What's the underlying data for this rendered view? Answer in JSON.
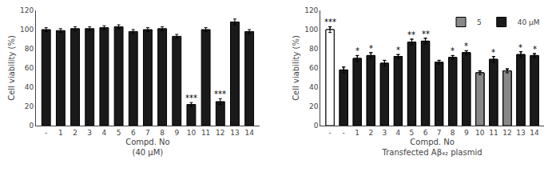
{
  "chart_data": [
    {
      "type": "bar",
      "categories": [
        "-",
        "1",
        "2",
        "3",
        "4",
        "5",
        "6",
        "7",
        "8",
        "9",
        "10",
        "11",
        "12",
        "13",
        "14"
      ],
      "values": [
        100,
        99,
        101,
        101,
        102,
        103,
        98,
        100,
        101,
        93,
        22,
        100,
        25,
        108,
        98
      ],
      "errors": [
        2,
        2,
        2,
        2,
        2,
        2,
        2,
        2,
        2,
        2,
        2,
        2,
        3,
        3,
        2
      ],
      "annotations": [
        null,
        null,
        null,
        null,
        null,
        null,
        null,
        null,
        null,
        null,
        "***",
        null,
        "***",
        null,
        null
      ],
      "color": "#1a1a1a",
      "ylabel": "Cell viability (%)",
      "xlabel": [
        "Compd. No",
        "(40 μM)"
      ],
      "ylim": [
        0,
        120
      ],
      "yticks": [
        0,
        20,
        40,
        60,
        80,
        100,
        120
      ],
      "grid": false
    },
    {
      "type": "bar",
      "categories": [
        "-",
        "-",
        "1",
        "2",
        "3",
        "4",
        "5",
        "6",
        "7",
        "8",
        "9",
        "10",
        "11",
        "12",
        "13",
        "14"
      ],
      "series": [
        {
          "name": "5",
          "color": "#888888",
          "values": [
            null,
            null,
            null,
            null,
            null,
            null,
            null,
            null,
            null,
            null,
            null,
            55,
            null,
            57,
            null,
            null
          ],
          "errors": [
            null,
            null,
            null,
            null,
            null,
            null,
            null,
            null,
            null,
            null,
            null,
            2,
            null,
            2,
            null,
            null
          ]
        },
        {
          "name": "40 μM",
          "color": "#1a1a1a",
          "colors": [
            "#ffffff",
            "#1a1a1a",
            "#1a1a1a",
            "#1a1a1a",
            "#1a1a1a",
            "#1a1a1a",
            "#1a1a1a",
            "#1a1a1a",
            "#1a1a1a",
            "#1a1a1a",
            "#1a1a1a",
            "#888888",
            "#1a1a1a",
            "#888888",
            "#1a1a1a",
            "#1a1a1a"
          ],
          "values": [
            100,
            58,
            70,
            73,
            65,
            72,
            87,
            88,
            66,
            71,
            76,
            55,
            69,
            57,
            74,
            73
          ],
          "errors": [
            3,
            3,
            3,
            3,
            3,
            2,
            3,
            3,
            2,
            2,
            2,
            2,
            3,
            2,
            3,
            2
          ],
          "annotations": [
            "***",
            null,
            "*",
            "*",
            null,
            "*",
            "**",
            "**",
            null,
            "*",
            "*",
            null,
            "*",
            null,
            "*",
            "*"
          ]
        }
      ],
      "ylabel": "Cell viability (%)",
      "xlabel": [
        "Compd. No",
        "Transfected Aβ₄₂ plasmid"
      ],
      "ylim": [
        0,
        120
      ],
      "yticks": [
        0,
        20,
        40,
        60,
        80,
        100,
        120
      ],
      "grid": false,
      "legend": "upper right"
    }
  ]
}
